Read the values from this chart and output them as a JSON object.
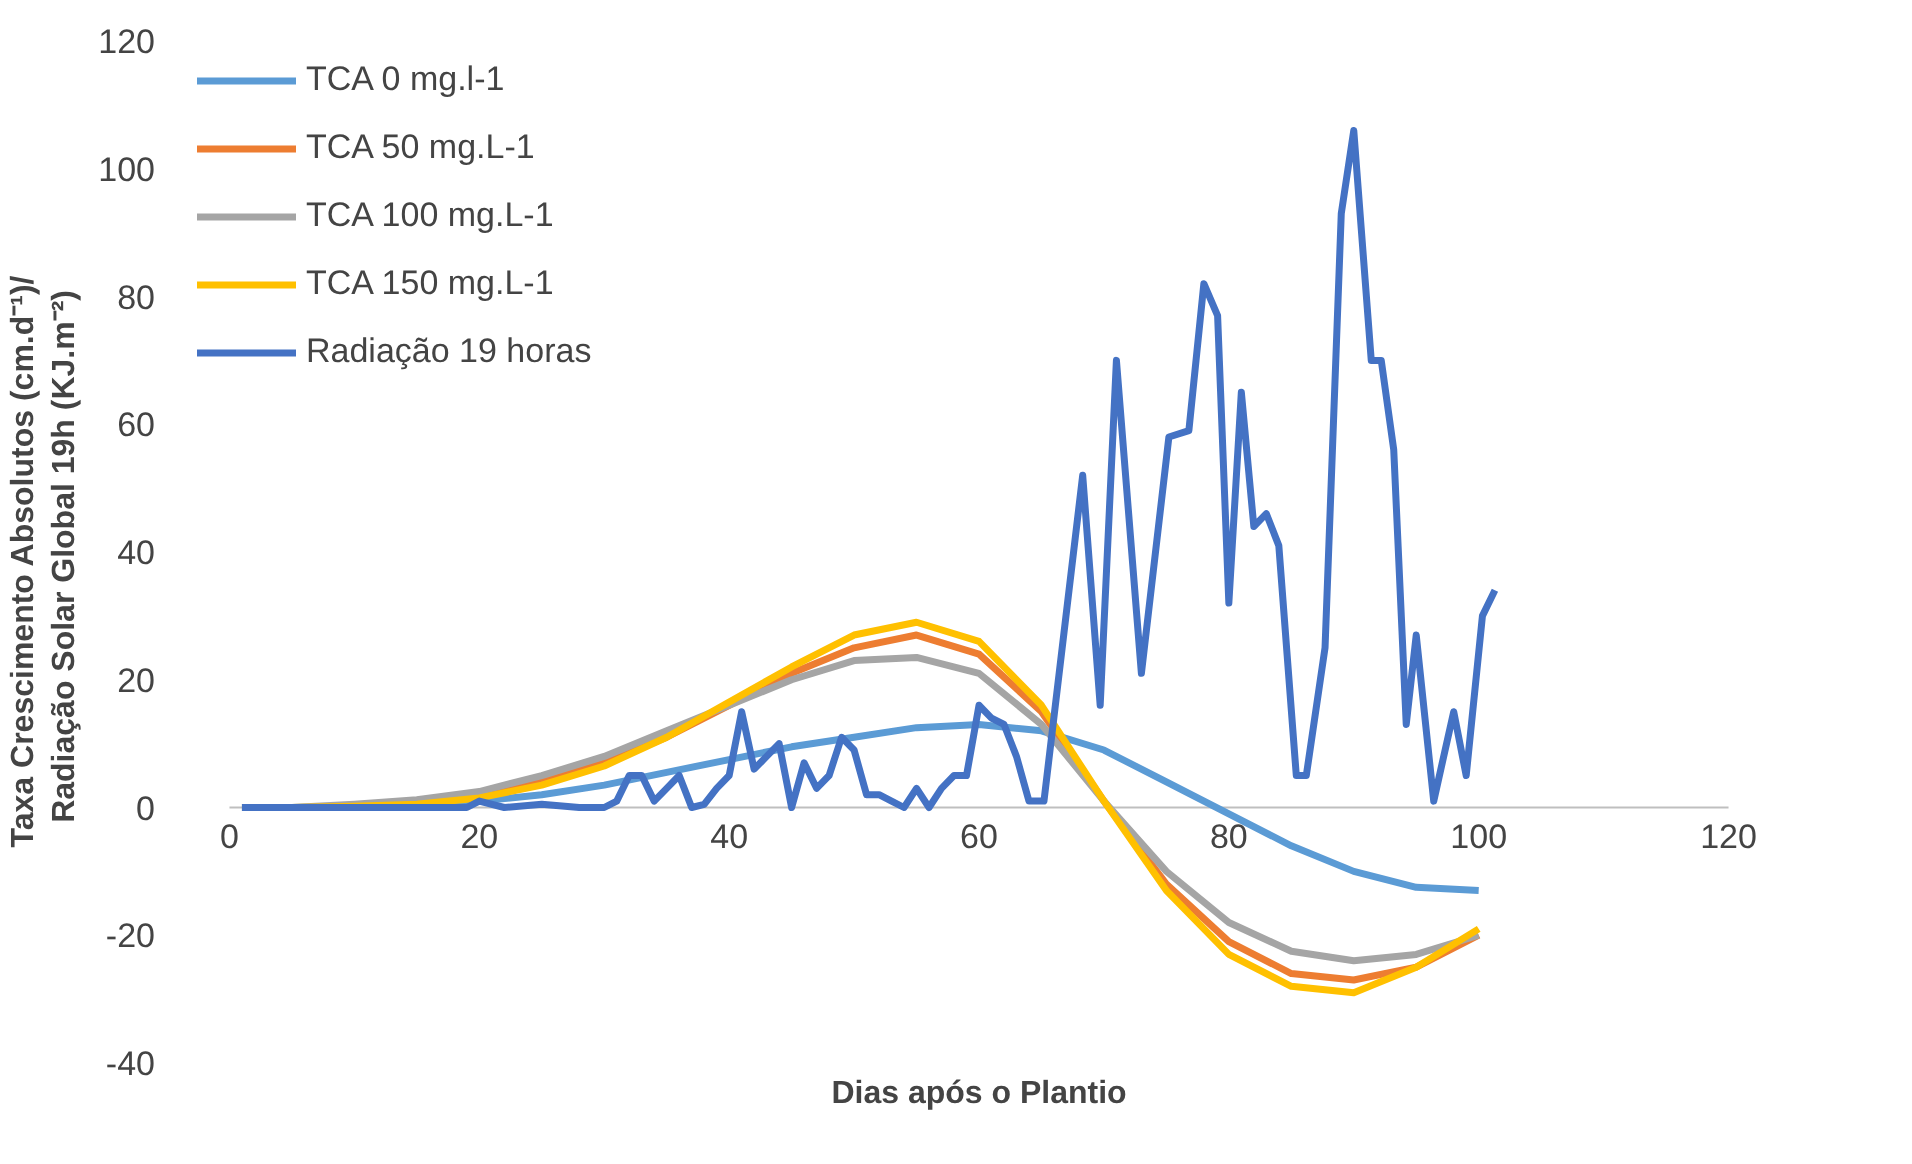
{
  "chart_data": {
    "type": "line",
    "xlabel": "Dias após o Plantio",
    "ylabel": "Taxa  Crescimento  Absolutos (cm.d⁻¹)/\nRadiação Solar Global 19h  (KJ.m⁻²)",
    "x": [
      1,
      5,
      10,
      15,
      20,
      25,
      30,
      35,
      40,
      45,
      50,
      55,
      60,
      65,
      70,
      75,
      80,
      85,
      90,
      95,
      100
    ],
    "series": [
      {
        "name": "TCA 0 mg.l-1",
        "color": "#5b9bd5",
        "values": [
          0,
          0,
          0.2,
          0.5,
          1,
          2,
          3.5,
          5.5,
          7.5,
          9.5,
          11,
          12.5,
          13,
          12,
          9,
          4,
          -1,
          -6,
          -10,
          -12.5,
          -13
        ]
      },
      {
        "name": "TCA 50 mg.L-1",
        "color": "#ed7d31",
        "values": [
          null,
          null,
          null,
          0.8,
          2,
          4,
          7,
          11,
          16,
          21,
          25,
          27,
          24,
          15,
          1,
          -12,
          -21,
          -26,
          -27,
          -25,
          -20
        ]
      },
      {
        "name": "TCA 100 mg.L-1",
        "color": "#a5a5a5",
        "values": [
          0,
          0,
          0.5,
          1.2,
          2.5,
          5,
          8,
          12,
          16,
          20,
          23,
          23.5,
          21,
          13,
          1,
          -10,
          -18,
          -22.5,
          -24,
          -23,
          -20
        ]
      },
      {
        "name": "TCA 150 mg.L-1",
        "color": "#ffc000",
        "values": [
          0,
          0,
          0.2,
          0.5,
          1.5,
          3.5,
          6.5,
          11,
          16.5,
          22,
          27,
          29,
          26,
          16,
          1,
          -13,
          -23,
          -28,
          -29,
          -25,
          -19
        ]
      },
      {
        "name": "Radiação 19 horas",
        "color": "#4472c4",
        "x": [
          1,
          10,
          19,
          20,
          22,
          25,
          28,
          30,
          31,
          32,
          33,
          34,
          35,
          36,
          37,
          38,
          39,
          40,
          41,
          42,
          43,
          44,
          45,
          46,
          47,
          48,
          49,
          50,
          51,
          52,
          53,
          54,
          55,
          56,
          57,
          58,
          59,
          60,
          61,
          62,
          63,
          64,
          65.2,
          68.3,
          69.7,
          71,
          73,
          75.2,
          76.8,
          78,
          79.1,
          80,
          81,
          82,
          83,
          84,
          85.4,
          86.2,
          87.7,
          89,
          90,
          91.4,
          92.2,
          93.2,
          94.2,
          95,
          96.4,
          98,
          99,
          100.3,
          101.3
        ],
        "values": [
          0,
          0,
          0,
          1,
          0,
          0.5,
          0,
          0,
          1,
          5,
          5,
          1,
          3,
          5,
          0,
          0.5,
          3,
          5,
          15,
          6,
          8,
          10,
          0,
          7,
          3,
          5,
          11,
          9,
          2,
          2,
          1,
          0,
          3,
          0,
          3,
          5,
          5,
          16,
          14,
          13,
          8,
          1,
          1,
          52,
          16,
          70,
          21,
          58,
          59,
          82,
          77,
          32,
          65,
          44,
          46,
          41,
          5,
          5,
          25,
          93,
          106,
          70,
          70,
          56,
          13,
          27,
          1,
          15,
          5,
          30,
          34
        ]
      }
    ],
    "xlim": [
      0,
      120
    ],
    "xticks": [
      0,
      20,
      40,
      60,
      80,
      100,
      120
    ],
    "ylim": [
      -40,
      120
    ],
    "yticks": [
      -40,
      -20,
      0,
      20,
      40,
      60,
      80,
      100,
      120
    ],
    "grid": false,
    "legend": "top left",
    "line_style": "solid",
    "marker": "none"
  }
}
